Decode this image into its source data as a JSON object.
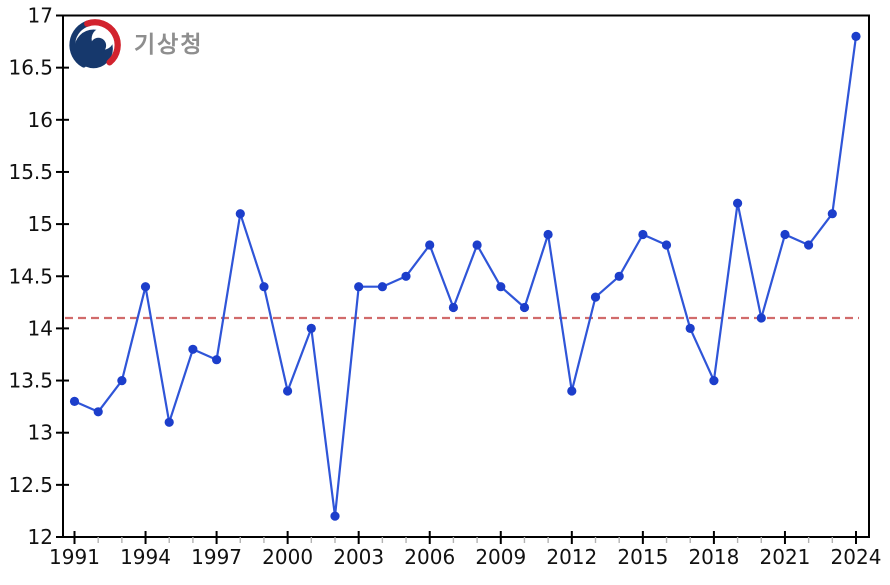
{
  "logo": {
    "agency_name": "기상청",
    "emblem_colors": {
      "navy": "#16386c",
      "red": "#d2232e",
      "white": "#ffffff"
    },
    "text_color": "#8e8e8e"
  },
  "chart_data": {
    "type": "line",
    "title": "",
    "xlabel": "",
    "ylabel": "",
    "x": [
      1991,
      1992,
      1993,
      1994,
      1995,
      1996,
      1997,
      1998,
      1999,
      2000,
      2001,
      2002,
      2003,
      2004,
      2005,
      2006,
      2007,
      2008,
      2009,
      2010,
      2011,
      2012,
      2013,
      2014,
      2015,
      2016,
      2017,
      2018,
      2019,
      2020,
      2021,
      2022,
      2023,
      2024
    ],
    "series": [
      {
        "name": "annual-value",
        "color": "#2f55d8",
        "marker_color": "#1c3ecb",
        "marker": "circle",
        "values": [
          13.3,
          13.2,
          13.5,
          14.4,
          13.1,
          13.8,
          13.7,
          15.1,
          14.4,
          13.4,
          14.0,
          12.2,
          14.4,
          14.4,
          14.5,
          14.8,
          14.2,
          14.8,
          14.4,
          14.2,
          14.9,
          13.4,
          14.3,
          14.5,
          14.9,
          14.8,
          14.0,
          13.5,
          15.2,
          14.1,
          14.9,
          14.8,
          15.1,
          16.8
        ]
      }
    ],
    "reference_line": {
      "value": 14.1,
      "color": "#cd5c5c",
      "style": "dashed"
    },
    "ylim": [
      12,
      17
    ],
    "ytick_values": [
      12,
      12.5,
      13,
      13.5,
      14,
      14.5,
      15,
      15.5,
      16,
      16.5,
      17
    ],
    "ytick_labels": [
      "12",
      "12.5",
      "13",
      "13.5",
      "14",
      "14.5",
      "15",
      "15.5",
      "16",
      "16.5",
      "17"
    ],
    "xtick_step_years": 3,
    "xtick_labels": [
      "1991",
      "1994",
      "1997",
      "2000",
      "2003",
      "2006",
      "2009",
      "2012",
      "2015",
      "2018",
      "2021",
      "2024"
    ],
    "grid": false,
    "legend": null,
    "frame": "box",
    "axis_color": "#000000",
    "minor_tick_color": "#b3b3b3"
  }
}
